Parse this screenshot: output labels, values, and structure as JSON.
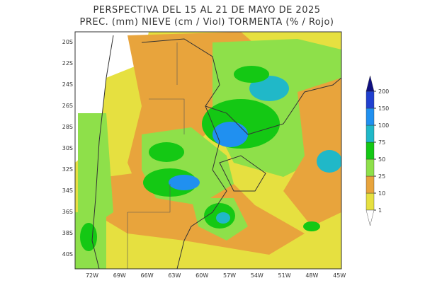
{
  "title": {
    "line1": "PERSPECTIVA DEL 15 AL 21 DE MAYO DE 2025",
    "line2": "PREC. (mm) NIEVE (cm / Viol) TORMENTA (% / Rojo)"
  },
  "map": {
    "lat_labels": [
      "20S",
      "22S",
      "24S",
      "26S",
      "28S",
      "30S",
      "32S",
      "34S",
      "36S",
      "38S",
      "40S"
    ],
    "lon_labels": [
      "72W",
      "69W",
      "66W",
      "63W",
      "60W",
      "57W",
      "54W",
      "51W",
      "48W",
      "45W"
    ]
  },
  "colorbar": {
    "levels": [
      1,
      10,
      25,
      50,
      75,
      100,
      150,
      200
    ],
    "colors": [
      "#e6e040",
      "#e8a43c",
      "#8ee04a",
      "#14c814",
      "#20b8c8",
      "#2090f0",
      "#2040d0"
    ],
    "under_color": "#ffffff",
    "over_color": "#101080"
  }
}
